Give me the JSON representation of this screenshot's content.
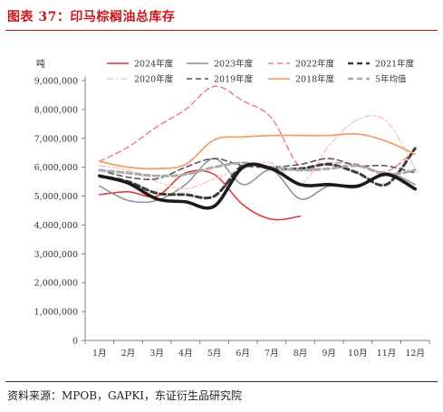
{
  "figure": {
    "title": "图表 37：印马棕榈油总库存",
    "source": "资料来源：MPOB，GAPKI，东证衍生品研究院"
  },
  "chart_data": {
    "type": "line",
    "unit_label": "吨",
    "categories": [
      "1月",
      "2月",
      "3月",
      "4月",
      "5月",
      "6月",
      "7月",
      "8月",
      "9月",
      "10月",
      "11月",
      "12月"
    ],
    "ylim": [
      0,
      9000000
    ],
    "yticks": [
      0,
      1000000,
      2000000,
      3000000,
      4000000,
      5000000,
      6000000,
      7000000,
      8000000,
      9000000
    ],
    "ytick_labels": [
      "0",
      "1,000,000",
      "2,000,000",
      "3,000,000",
      "4,000,000",
      "5,000,000",
      "6,000,000",
      "7,000,000",
      "8,000,000",
      "9,000,000"
    ],
    "grid": false,
    "legend_position": "top",
    "series": [
      {
        "name": "2024年度",
        "color": "#e03030",
        "dash": "solid",
        "width": 1.5,
        "values": [
          5050000,
          5150000,
          5000000,
          5800000,
          5750000,
          4700000,
          4200000,
          4300000,
          null,
          null,
          null,
          null
        ]
      },
      {
        "name": "2023年度",
        "color": "#8c8c8c",
        "dash": "solid",
        "width": 1.5,
        "values": [
          5350000,
          4850000,
          4850000,
          5400000,
          6300000,
          5400000,
          5900000,
          4900000,
          5350000,
          5300000,
          5800000,
          5400000
        ]
      },
      {
        "name": "2022年度",
        "color": "#f08080",
        "dash": "dashed",
        "width": 1.5,
        "values": [
          6200000,
          6700000,
          7400000,
          8000000,
          8800000,
          8300000,
          7700000,
          6000000,
          6150000,
          6100000,
          5850000,
          6600000
        ]
      },
      {
        "name": "2021年度",
        "color": "#3a3a3a",
        "dash": "dashed",
        "width": 3,
        "values": [
          5700000,
          5500000,
          5100000,
          5050000,
          5000000,
          6050000,
          5950000,
          5950000,
          6100000,
          5800000,
          5400000,
          6650000
        ]
      },
      {
        "name": "2020年度",
        "color": "#f6c8c8",
        "dash": "dashdot",
        "width": 1.5,
        "values": [
          6050000,
          5900000,
          5500000,
          5250000,
          5600000,
          5950000,
          6150000,
          5400000,
          6750000,
          7650000,
          7600000,
          5950000
        ]
      },
      {
        "name": "2019年度",
        "color": "#505050",
        "dash": "dashed",
        "width": 1.5,
        "values": [
          5900000,
          5650000,
          5600000,
          6000000,
          6300000,
          6050000,
          6000000,
          6100000,
          6300000,
          6050000,
          6050000,
          5800000
        ]
      },
      {
        "name": "2018年度",
        "color": "#f0a070",
        "dash": "solid",
        "width": 1.8,
        "values": [
          6200000,
          6000000,
          5950000,
          6100000,
          6950000,
          7050000,
          7100000,
          7100000,
          7100000,
          7150000,
          6900000,
          6450000
        ]
      },
      {
        "name": "5年均值",
        "color": "#aaaaaa",
        "dash": "dashed",
        "width": 3,
        "values": [
          5900000,
          5800000,
          5700000,
          5750000,
          6000000,
          6150000,
          6000000,
          5900000,
          5950000,
          6050000,
          5750000,
          5900000
        ]
      },
      {
        "name": "",
        "color": "#1a1a1a",
        "dash": "solid",
        "width": 3.6,
        "values": [
          5700000,
          5450000,
          4900000,
          4800000,
          4650000,
          6000000,
          5950000,
          5400000,
          5400000,
          5350000,
          5750000,
          5250000
        ]
      }
    ]
  }
}
